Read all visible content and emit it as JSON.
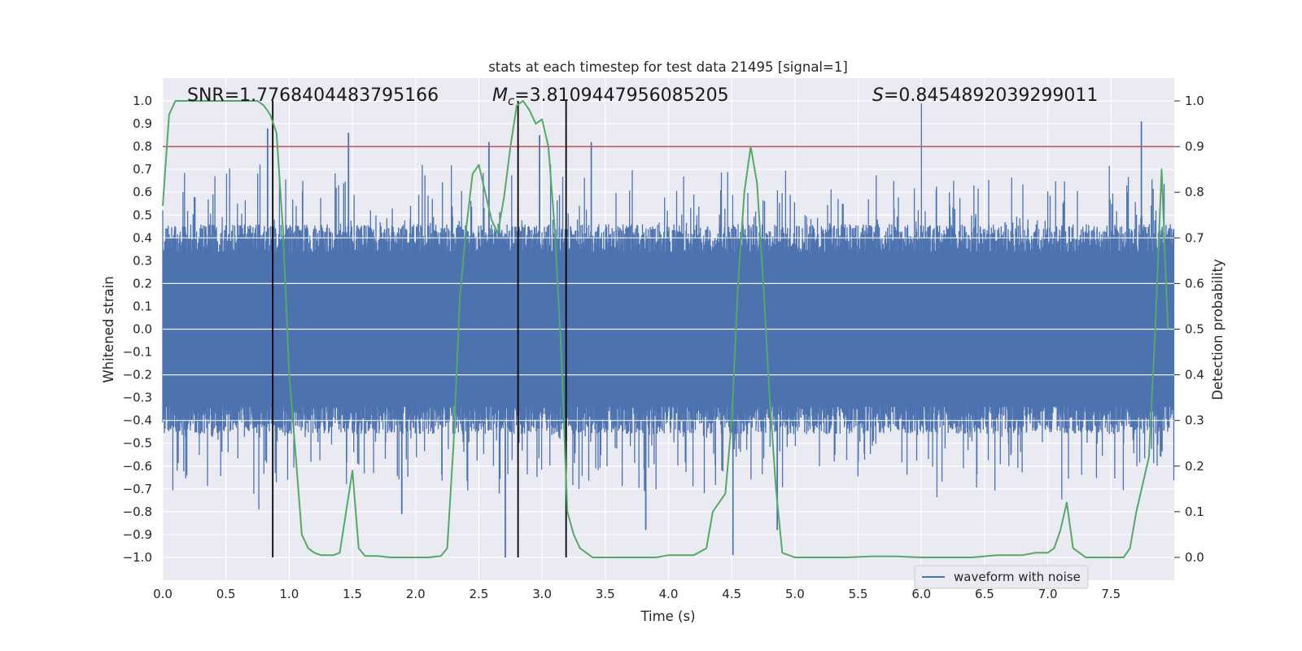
{
  "chart_data": {
    "type": "line",
    "title": "stats at each timestep for test data 21495 [signal=1]",
    "xlabel": "Time (s)",
    "ylabel_left": "Whitened strain",
    "ylabel_right": "Detection probability",
    "xlim": [
      0.0,
      8.0
    ],
    "ylim_left": [
      -1.1,
      1.1
    ],
    "ylim_right": [
      -0.05,
      1.05
    ],
    "x_ticks": [
      "0.0",
      "0.5",
      "1.0",
      "1.5",
      "2.0",
      "2.5",
      "3.0",
      "3.5",
      "4.0",
      "4.5",
      "5.0",
      "5.5",
      "6.0",
      "6.5",
      "7.0",
      "7.5"
    ],
    "y_left_ticks": [
      "1.0",
      "0.9",
      "0.8",
      "0.7",
      "0.6",
      "0.5",
      "0.4",
      "0.3",
      "0.2",
      "0.1",
      "0.0",
      "−0.1",
      "−0.2",
      "−0.3",
      "−0.4",
      "−0.5",
      "−0.6",
      "−0.7",
      "−0.8",
      "−0.9",
      "−1.0"
    ],
    "y_right_ticks": [
      "1.0",
      "0.9",
      "0.8",
      "0.7",
      "0.6",
      "0.5",
      "0.4",
      "0.3",
      "0.2",
      "0.1",
      "0.0"
    ],
    "grid": true,
    "annotations": {
      "snr": "SNR=1.7768404483795166",
      "mc_symbol": "M",
      "mc_sub": "c",
      "mc_value": "=3.8109447956085205",
      "s_symbol": "S",
      "s_value": "=0.8454892039299011"
    },
    "threshold_right": 0.9,
    "vertical_lines_x": [
      0.87,
      2.81,
      3.19
    ],
    "legend": {
      "label": "waveform with noise",
      "position": "lower-right"
    },
    "colors": {
      "background": "#eaeaf2",
      "grid": "#ffffff",
      "waveform": "#4c72b0",
      "probability": "#55a868",
      "threshold": "#c44e52",
      "vlines": "#000000"
    },
    "series": [
      {
        "name": "waveform with noise",
        "axis": "left",
        "description_level": "noisy strain oscillating roughly within ±0.45, peaks to ±1.0",
        "peaks": [
          {
            "x": 0.83,
            "y": 0.88
          },
          {
            "x": 1.47,
            "y": 0.86
          },
          {
            "x": 2.58,
            "y": 0.82
          },
          {
            "x": 2.71,
            "y": -1.0
          },
          {
            "x": 2.98,
            "y": 0.85
          },
          {
            "x": 3.39,
            "y": 0.82
          },
          {
            "x": 3.82,
            "y": -0.88
          },
          {
            "x": 4.51,
            "y": -0.99
          },
          {
            "x": 6.0,
            "y": 0.99
          },
          {
            "x": 7.74,
            "y": 0.91
          },
          {
            "x": 0.76,
            "y": -0.79
          },
          {
            "x": 1.89,
            "y": -0.81
          },
          {
            "x": 4.86,
            "y": -0.88
          }
        ]
      },
      {
        "name": "Detection probability",
        "axis": "right",
        "x": [
          0.0,
          0.05,
          0.1,
          0.2,
          0.3,
          0.4,
          0.5,
          0.6,
          0.7,
          0.75,
          0.8,
          0.85,
          0.9,
          0.95,
          1.0,
          1.05,
          1.1,
          1.15,
          1.2,
          1.25,
          1.3,
          1.35,
          1.4,
          1.45,
          1.5,
          1.55,
          1.6,
          1.7,
          1.8,
          1.9,
          2.0,
          2.1,
          2.2,
          2.25,
          2.3,
          2.35,
          2.4,
          2.45,
          2.5,
          2.55,
          2.6,
          2.65,
          2.7,
          2.75,
          2.8,
          2.85,
          2.9,
          2.95,
          3.0,
          3.05,
          3.1,
          3.15,
          3.2,
          3.25,
          3.3,
          3.35,
          3.4,
          3.45,
          3.5,
          3.6,
          3.7,
          3.8,
          3.9,
          4.0,
          4.1,
          4.2,
          4.3,
          4.35,
          4.4,
          4.45,
          4.5,
          4.55,
          4.6,
          4.65,
          4.7,
          4.75,
          4.8,
          4.85,
          4.9,
          4.95,
          5.0,
          5.2,
          5.4,
          5.6,
          5.8,
          6.0,
          6.2,
          6.4,
          6.6,
          6.8,
          6.9,
          7.0,
          7.05,
          7.1,
          7.15,
          7.2,
          7.25,
          7.3,
          7.4,
          7.5,
          7.6,
          7.65,
          7.7,
          7.75,
          7.8,
          7.85,
          7.9,
          7.95
        ],
        "y": [
          0.77,
          0.97,
          1.0,
          1.0,
          1.0,
          1.0,
          1.0,
          1.0,
          1.0,
          1.0,
          0.99,
          0.97,
          0.93,
          0.72,
          0.4,
          0.23,
          0.05,
          0.02,
          0.01,
          0.005,
          0.005,
          0.005,
          0.01,
          0.1,
          0.19,
          0.02,
          0.003,
          0.003,
          0.0,
          0.0,
          0.0,
          0.0,
          0.003,
          0.02,
          0.25,
          0.57,
          0.72,
          0.84,
          0.86,
          0.8,
          0.74,
          0.71,
          0.79,
          0.9,
          0.99,
          1.0,
          0.98,
          0.95,
          0.96,
          0.9,
          0.72,
          0.46,
          0.1,
          0.05,
          0.02,
          0.01,
          0.0,
          0.0,
          0.0,
          0.0,
          0.0,
          0.0,
          0.0,
          0.005,
          0.005,
          0.005,
          0.02,
          0.1,
          0.12,
          0.14,
          0.3,
          0.6,
          0.8,
          0.9,
          0.82,
          0.6,
          0.35,
          0.15,
          0.01,
          0.005,
          0.0,
          0.0,
          0.0,
          0.002,
          0.002,
          0.0,
          0.0,
          0.0,
          0.005,
          0.005,
          0.01,
          0.01,
          0.02,
          0.06,
          0.12,
          0.02,
          0.01,
          0.0,
          0.0,
          0.0,
          0.0,
          0.02,
          0.1,
          0.16,
          0.22,
          0.5,
          0.85,
          0.5
        ]
      }
    ]
  }
}
